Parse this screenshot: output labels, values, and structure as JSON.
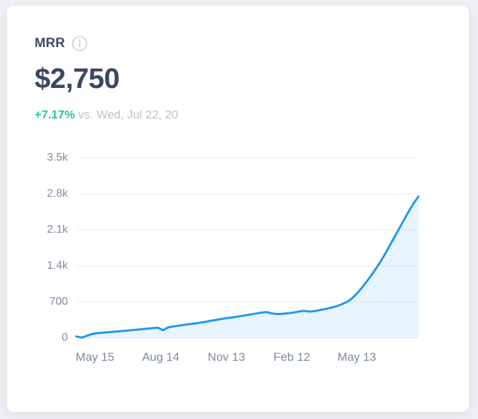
{
  "page": {
    "background": "#edeff2"
  },
  "card": {
    "title": "MRR",
    "value": "$2,750",
    "change_percent": "+7.17%",
    "comparison_text": "vs. Wed, Jul 22, 20",
    "colors": {
      "title": "#3e4b66",
      "value": "#3a4663",
      "positive": "#1fcb8a",
      "muted": "#b9c1cd",
      "axis_label": "#7e8a9f",
      "gridline": "#e9ebee"
    },
    "icons": {
      "info": "info-icon"
    }
  },
  "chart_data": {
    "type": "area",
    "title": "MRR trend",
    "series_name": "MRR",
    "xlabel": "",
    "ylabel": "",
    "ylim": [
      0,
      3500
    ],
    "grid": true,
    "legend": "none",
    "line_color": "#1e96f3",
    "fill_color": "rgba(32,150,243,0.10)",
    "y_ticks": [
      {
        "value": 0,
        "label": "0"
      },
      {
        "value": 700,
        "label": "700"
      },
      {
        "value": 1400,
        "label": "1.4k"
      },
      {
        "value": 2100,
        "label": "2.1k"
      },
      {
        "value": 2800,
        "label": "2.8k"
      },
      {
        "value": 3500,
        "label": "3.5k"
      }
    ],
    "x_ticks": [
      {
        "label": "May 15",
        "pos": 0.055
      },
      {
        "label": "Aug 14",
        "pos": 0.247
      },
      {
        "label": "Nov 13",
        "pos": 0.439
      },
      {
        "label": "Feb 12",
        "pos": 0.63
      },
      {
        "label": "May 13",
        "pos": 0.82
      }
    ],
    "values": [
      30,
      8,
      45,
      80,
      96,
      105,
      113,
      121,
      130,
      140,
      150,
      160,
      170,
      180,
      192,
      200,
      152,
      208,
      226,
      242,
      256,
      270,
      284,
      300,
      318,
      338,
      356,
      374,
      390,
      404,
      420,
      438,
      456,
      474,
      492,
      505,
      478,
      465,
      470,
      482,
      495,
      515,
      528,
      512,
      525,
      545,
      565,
      590,
      620,
      660,
      710,
      790,
      900,
      1030,
      1170,
      1320,
      1480,
      1660,
      1850,
      2040,
      2230,
      2420,
      2600,
      2750
    ],
    "final_value": 2750
  }
}
